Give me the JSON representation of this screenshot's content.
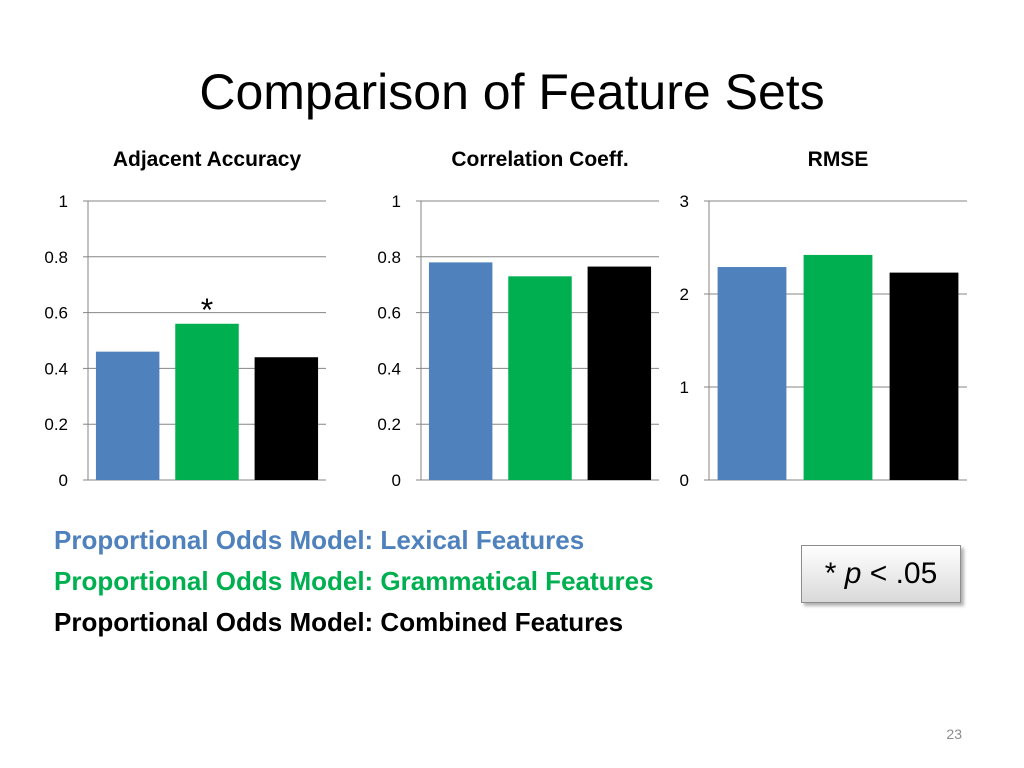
{
  "slide": {
    "title": "Comparison of Feature Sets",
    "page_number": "23"
  },
  "legend": [
    {
      "label": "Proportional Odds Model: Lexical Features",
      "color": "#4f81bd"
    },
    {
      "label": "Proportional Odds Model: Grammatical Features",
      "color": "#00b050"
    },
    {
      "label": "Proportional Odds Model: Combined Features",
      "color": "#000000"
    }
  ],
  "note": {
    "star": "* ",
    "p": "p",
    "rest": " < .05"
  },
  "chart_data": [
    {
      "type": "bar",
      "title": "Adjacent Accuracy",
      "ylim": [
        0,
        1
      ],
      "yticks": [
        "0",
        "0.2",
        "0.4",
        "0.6",
        "0.8",
        "1"
      ],
      "ytick_values": [
        0,
        0.2,
        0.4,
        0.6,
        0.8,
        1
      ],
      "grid": true,
      "series": [
        {
          "value": 0.46,
          "color": "#4f81bd"
        },
        {
          "value": 0.56,
          "color": "#00b050",
          "annotation": "*"
        },
        {
          "value": 0.44,
          "color": "#000000"
        }
      ]
    },
    {
      "type": "bar",
      "title": "Correlation Coeff.",
      "ylim": [
        0,
        1
      ],
      "yticks": [
        "0",
        "0.2",
        "0.4",
        "0.6",
        "0.8",
        "1"
      ],
      "ytick_values": [
        0,
        0.2,
        0.4,
        0.6,
        0.8,
        1
      ],
      "grid": true,
      "series": [
        {
          "value": 0.78,
          "color": "#4f81bd"
        },
        {
          "value": 0.73,
          "color": "#00b050"
        },
        {
          "value": 0.765,
          "color": "#000000"
        }
      ]
    },
    {
      "type": "bar",
      "title": "RMSE",
      "ylim": [
        0,
        3
      ],
      "yticks": [
        "0",
        "1",
        "2",
        "3"
      ],
      "ytick_values": [
        0,
        1,
        2,
        3
      ],
      "grid": true,
      "series": [
        {
          "value": 2.29,
          "color": "#4f81bd"
        },
        {
          "value": 2.42,
          "color": "#00b050"
        },
        {
          "value": 2.23,
          "color": "#000000"
        }
      ]
    }
  ]
}
